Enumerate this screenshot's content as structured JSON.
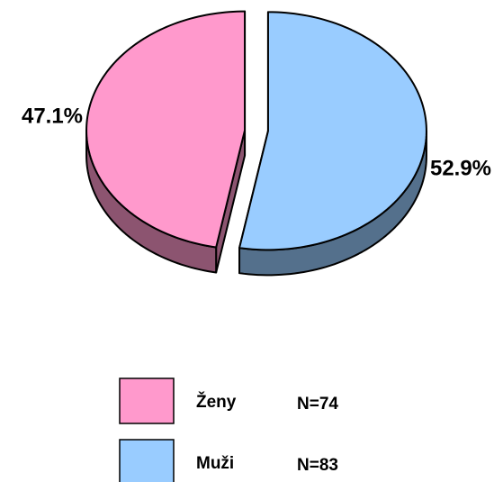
{
  "chart_data": {
    "type": "pie",
    "categories": [
      "Ženy",
      "Muži"
    ],
    "values": [
      47.1,
      52.9
    ],
    "value_labels": [
      "47.1%",
      "52.9%"
    ],
    "colors": [
      "#ff99cc",
      "#99ccff"
    ],
    "n_labels": [
      "N=74",
      "N=83"
    ]
  }
}
